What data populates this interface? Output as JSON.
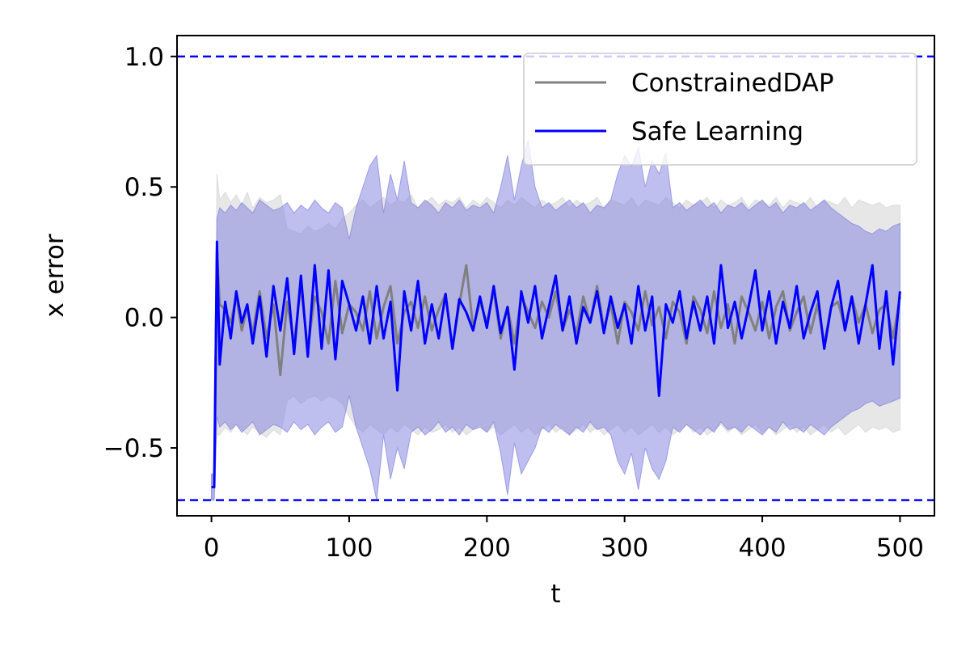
{
  "chart_data": {
    "type": "line",
    "title": "",
    "xlabel": "t",
    "ylabel": "x error",
    "xlim": [
      -25,
      525
    ],
    "ylim": [
      -0.76,
      1.08
    ],
    "xticks": [
      0,
      100,
      200,
      300,
      400,
      500
    ],
    "yticks": [
      -0.5,
      0.0,
      0.5,
      1.0
    ],
    "xtick_labels": [
      "0",
      "100",
      "200",
      "300",
      "400",
      "500"
    ],
    "ytick_labels": [
      "−0.5",
      "0.0",
      "0.5",
      "1.0"
    ],
    "grid": false,
    "legend_position": "top-right",
    "constraints": {
      "upper": 1.0,
      "lower": -0.7,
      "color": "#0000ff",
      "style": "dashed"
    },
    "series": [
      {
        "name": "ConstrainedDAP",
        "color": "#808080",
        "band_color": "#d3d3d3",
        "x": [
          0,
          2,
          4,
          6,
          10,
          14,
          18,
          22,
          26,
          30,
          35,
          40,
          45,
          50,
          55,
          60,
          65,
          70,
          75,
          80,
          85,
          90,
          95,
          100,
          105,
          110,
          115,
          120,
          125,
          130,
          135,
          140,
          145,
          150,
          155,
          160,
          165,
          170,
          175,
          180,
          185,
          190,
          195,
          200,
          205,
          210,
          215,
          220,
          225,
          230,
          235,
          240,
          245,
          250,
          255,
          260,
          265,
          270,
          275,
          280,
          285,
          290,
          295,
          300,
          305,
          310,
          315,
          320,
          325,
          330,
          335,
          340,
          345,
          350,
          355,
          360,
          365,
          370,
          375,
          380,
          385,
          390,
          395,
          400,
          405,
          410,
          415,
          420,
          425,
          430,
          435,
          440,
          445,
          450,
          455,
          460,
          465,
          470,
          475,
          480,
          485,
          490,
          495,
          500
        ],
        "mean": [
          -0.65,
          -0.65,
          0.25,
          0.05,
          0.03,
          -0.02,
          0.08,
          -0.05,
          0.04,
          -0.06,
          0.1,
          -0.08,
          0.05,
          -0.22,
          0.06,
          -0.1,
          0.12,
          -0.12,
          0.08,
          0.02,
          -0.1,
          0.14,
          -0.06,
          0.05,
          0.02,
          -0.05,
          0.1,
          -0.08,
          0.04,
          0.12,
          -0.1,
          0.02,
          0.06,
          -0.04,
          0.08,
          -0.05,
          0.03,
          0.09,
          -0.12,
          0.05,
          0.2,
          -0.04,
          0.06,
          -0.02,
          0.1,
          -0.08,
          0.04,
          -0.1,
          0.08,
          0.02,
          -0.04,
          0.06,
          0.0,
          0.1,
          -0.05,
          0.03,
          -0.06,
          0.08,
          -0.02,
          0.12,
          -0.04,
          0.05,
          -0.1,
          0.06,
          0.02,
          -0.05,
          0.1,
          -0.03,
          0.04,
          -0.08,
          0.06,
          0.02,
          -0.1,
          0.08,
          0.03,
          -0.06,
          0.1,
          -0.04,
          0.05,
          -0.1,
          0.08,
          0.02,
          -0.05,
          0.06,
          -0.08,
          0.04,
          0.1,
          -0.05,
          0.02,
          0.08,
          -0.06,
          0.05,
          -0.1,
          0.04,
          0.06,
          -0.04,
          0.08,
          -0.02,
          0.05,
          -0.06,
          0.03,
          0.05,
          -0.08,
          0.08
        ],
        "upper": [
          -0.6,
          -0.6,
          0.55,
          0.45,
          0.48,
          0.44,
          0.47,
          0.43,
          0.48,
          0.42,
          0.46,
          0.44,
          0.45,
          0.47,
          0.34,
          0.33,
          0.32,
          0.35,
          0.33,
          0.34,
          0.36,
          0.34,
          0.38,
          0.4,
          0.43,
          0.45,
          0.42,
          0.44,
          0.46,
          0.43,
          0.45,
          0.44,
          0.47,
          0.42,
          0.44,
          0.46,
          0.43,
          0.45,
          0.44,
          0.46,
          0.42,
          0.45,
          0.43,
          0.46,
          0.44,
          0.42,
          0.45,
          0.43,
          0.46,
          0.44,
          0.42,
          0.45,
          0.43,
          0.44,
          0.46,
          0.42,
          0.45,
          0.43,
          0.44,
          0.46,
          0.42,
          0.45,
          0.44,
          0.43,
          0.46,
          0.42,
          0.45,
          0.44,
          0.43,
          0.46,
          0.44,
          0.42,
          0.45,
          0.43,
          0.44,
          0.46,
          0.42,
          0.45,
          0.43,
          0.44,
          0.46,
          0.42,
          0.45,
          0.44,
          0.43,
          0.46,
          0.42,
          0.45,
          0.44,
          0.43,
          0.46,
          0.42,
          0.45,
          0.44,
          0.43,
          0.46,
          0.42,
          0.45,
          0.44,
          0.43,
          0.44,
          0.42,
          0.43,
          0.43
        ],
        "lower": [
          -0.7,
          -0.7,
          -0.45,
          -0.45,
          -0.42,
          -0.44,
          -0.41,
          -0.43,
          -0.45,
          -0.42,
          -0.44,
          -0.46,
          -0.43,
          -0.45,
          -0.32,
          -0.3,
          -0.33,
          -0.31,
          -0.3,
          -0.32,
          -0.3,
          -0.31,
          -0.33,
          -0.38,
          -0.42,
          -0.44,
          -0.41,
          -0.43,
          -0.45,
          -0.42,
          -0.44,
          -0.41,
          -0.43,
          -0.45,
          -0.42,
          -0.44,
          -0.43,
          -0.41,
          -0.44,
          -0.42,
          -0.45,
          -0.43,
          -0.41,
          -0.44,
          -0.42,
          -0.45,
          -0.43,
          -0.41,
          -0.44,
          -0.42,
          -0.45,
          -0.43,
          -0.41,
          -0.44,
          -0.42,
          -0.45,
          -0.43,
          -0.41,
          -0.44,
          -0.42,
          -0.45,
          -0.43,
          -0.41,
          -0.44,
          -0.42,
          -0.45,
          -0.43,
          -0.41,
          -0.44,
          -0.42,
          -0.45,
          -0.43,
          -0.41,
          -0.44,
          -0.42,
          -0.45,
          -0.43,
          -0.41,
          -0.44,
          -0.42,
          -0.45,
          -0.43,
          -0.41,
          -0.44,
          -0.42,
          -0.45,
          -0.43,
          -0.41,
          -0.44,
          -0.42,
          -0.45,
          -0.43,
          -0.41,
          -0.44,
          -0.42,
          -0.45,
          -0.43,
          -0.41,
          -0.44,
          -0.42,
          -0.43,
          -0.42,
          -0.44,
          -0.43
        ]
      },
      {
        "name": "Safe Learning",
        "color": "#0000ff",
        "band_color": "#8080e0",
        "x": [
          0,
          2,
          4,
          6,
          10,
          14,
          18,
          22,
          26,
          30,
          35,
          40,
          45,
          50,
          55,
          60,
          65,
          70,
          75,
          80,
          85,
          90,
          95,
          100,
          105,
          110,
          115,
          120,
          125,
          130,
          135,
          140,
          145,
          150,
          155,
          160,
          165,
          170,
          175,
          180,
          185,
          190,
          195,
          200,
          205,
          210,
          215,
          220,
          225,
          230,
          235,
          240,
          245,
          250,
          255,
          260,
          265,
          270,
          275,
          280,
          285,
          290,
          295,
          300,
          305,
          310,
          315,
          320,
          325,
          330,
          335,
          340,
          345,
          350,
          355,
          360,
          365,
          370,
          375,
          380,
          385,
          390,
          395,
          400,
          405,
          410,
          415,
          420,
          425,
          430,
          435,
          440,
          445,
          450,
          455,
          460,
          465,
          470,
          475,
          480,
          485,
          490,
          495,
          500
        ],
        "mean": [
          -0.65,
          -0.65,
          0.29,
          -0.18,
          0.06,
          -0.08,
          0.1,
          -0.02,
          0.05,
          -0.1,
          0.08,
          -0.15,
          0.12,
          -0.05,
          0.15,
          -0.14,
          0.16,
          -0.15,
          0.2,
          -0.12,
          0.18,
          -0.16,
          0.14,
          0.05,
          -0.05,
          0.08,
          -0.1,
          0.12,
          -0.08,
          0.06,
          -0.28,
          0.1,
          -0.05,
          0.14,
          -0.1,
          0.05,
          -0.08,
          0.09,
          -0.12,
          0.07,
          0.02,
          -0.05,
          0.08,
          -0.04,
          0.12,
          -0.06,
          0.04,
          -0.2,
          0.1,
          -0.02,
          0.12,
          -0.08,
          0.04,
          0.16,
          -0.05,
          0.08,
          -0.1,
          0.04,
          -0.02,
          0.1,
          -0.06,
          0.08,
          -0.04,
          0.05,
          -0.1,
          0.12,
          -0.05,
          0.08,
          -0.3,
          0.05,
          -0.02,
          0.1,
          -0.08,
          0.06,
          -0.05,
          0.08,
          -0.1,
          0.2,
          -0.04,
          0.06,
          -0.08,
          0.04,
          0.18,
          -0.05,
          0.1,
          -0.1,
          0.06,
          -0.04,
          0.12,
          -0.08,
          0.02,
          0.1,
          -0.12,
          0.04,
          0.14,
          -0.05,
          0.08,
          -0.1,
          0.05,
          0.2,
          -0.12,
          0.1,
          -0.18,
          0.1
        ],
        "upper": [
          -0.6,
          -0.6,
          0.38,
          0.42,
          0.4,
          0.43,
          0.41,
          0.44,
          0.42,
          0.4,
          0.45,
          0.43,
          0.41,
          0.42,
          0.44,
          0.4,
          0.43,
          0.41,
          0.45,
          0.42,
          0.4,
          0.44,
          0.42,
          0.3,
          0.42,
          0.5,
          0.58,
          0.62,
          0.4,
          0.55,
          0.45,
          0.6,
          0.44,
          0.42,
          0.45,
          0.43,
          0.4,
          0.44,
          0.42,
          0.45,
          0.41,
          0.43,
          0.42,
          0.44,
          0.4,
          0.5,
          0.62,
          0.45,
          0.58,
          0.68,
          0.5,
          0.42,
          0.44,
          0.41,
          0.43,
          0.45,
          0.42,
          0.44,
          0.4,
          0.43,
          0.42,
          0.45,
          0.55,
          0.62,
          0.58,
          0.65,
          0.5,
          0.6,
          0.55,
          0.63,
          0.42,
          0.44,
          0.41,
          0.43,
          0.45,
          0.42,
          0.44,
          0.4,
          0.43,
          0.42,
          0.44,
          0.41,
          0.43,
          0.45,
          0.42,
          0.44,
          0.4,
          0.43,
          0.42,
          0.44,
          0.41,
          0.43,
          0.45,
          0.42,
          0.4,
          0.38,
          0.36,
          0.35,
          0.33,
          0.32,
          0.34,
          0.33,
          0.35,
          0.36
        ],
        "lower": [
          -0.7,
          -0.7,
          -0.38,
          -0.42,
          -0.4,
          -0.43,
          -0.41,
          -0.44,
          -0.42,
          -0.4,
          -0.45,
          -0.43,
          -0.41,
          -0.42,
          -0.44,
          -0.4,
          -0.43,
          -0.41,
          -0.45,
          -0.42,
          -0.4,
          -0.44,
          -0.42,
          -0.3,
          -0.42,
          -0.5,
          -0.58,
          -0.7,
          -0.45,
          -0.62,
          -0.5,
          -0.58,
          -0.44,
          -0.42,
          -0.45,
          -0.43,
          -0.4,
          -0.44,
          -0.42,
          -0.45,
          -0.41,
          -0.43,
          -0.42,
          -0.44,
          -0.4,
          -0.52,
          -0.68,
          -0.48,
          -0.6,
          -0.55,
          -0.5,
          -0.42,
          -0.44,
          -0.41,
          -0.43,
          -0.45,
          -0.42,
          -0.44,
          -0.4,
          -0.43,
          -0.42,
          -0.45,
          -0.55,
          -0.6,
          -0.52,
          -0.66,
          -0.5,
          -0.58,
          -0.62,
          -0.55,
          -0.42,
          -0.44,
          -0.41,
          -0.43,
          -0.45,
          -0.42,
          -0.44,
          -0.4,
          -0.43,
          -0.42,
          -0.44,
          -0.41,
          -0.43,
          -0.45,
          -0.42,
          -0.44,
          -0.4,
          -0.43,
          -0.42,
          -0.44,
          -0.41,
          -0.43,
          -0.45,
          -0.42,
          -0.4,
          -0.38,
          -0.36,
          -0.35,
          -0.33,
          -0.32,
          -0.34,
          -0.33,
          -0.32,
          -0.31
        ]
      }
    ]
  }
}
